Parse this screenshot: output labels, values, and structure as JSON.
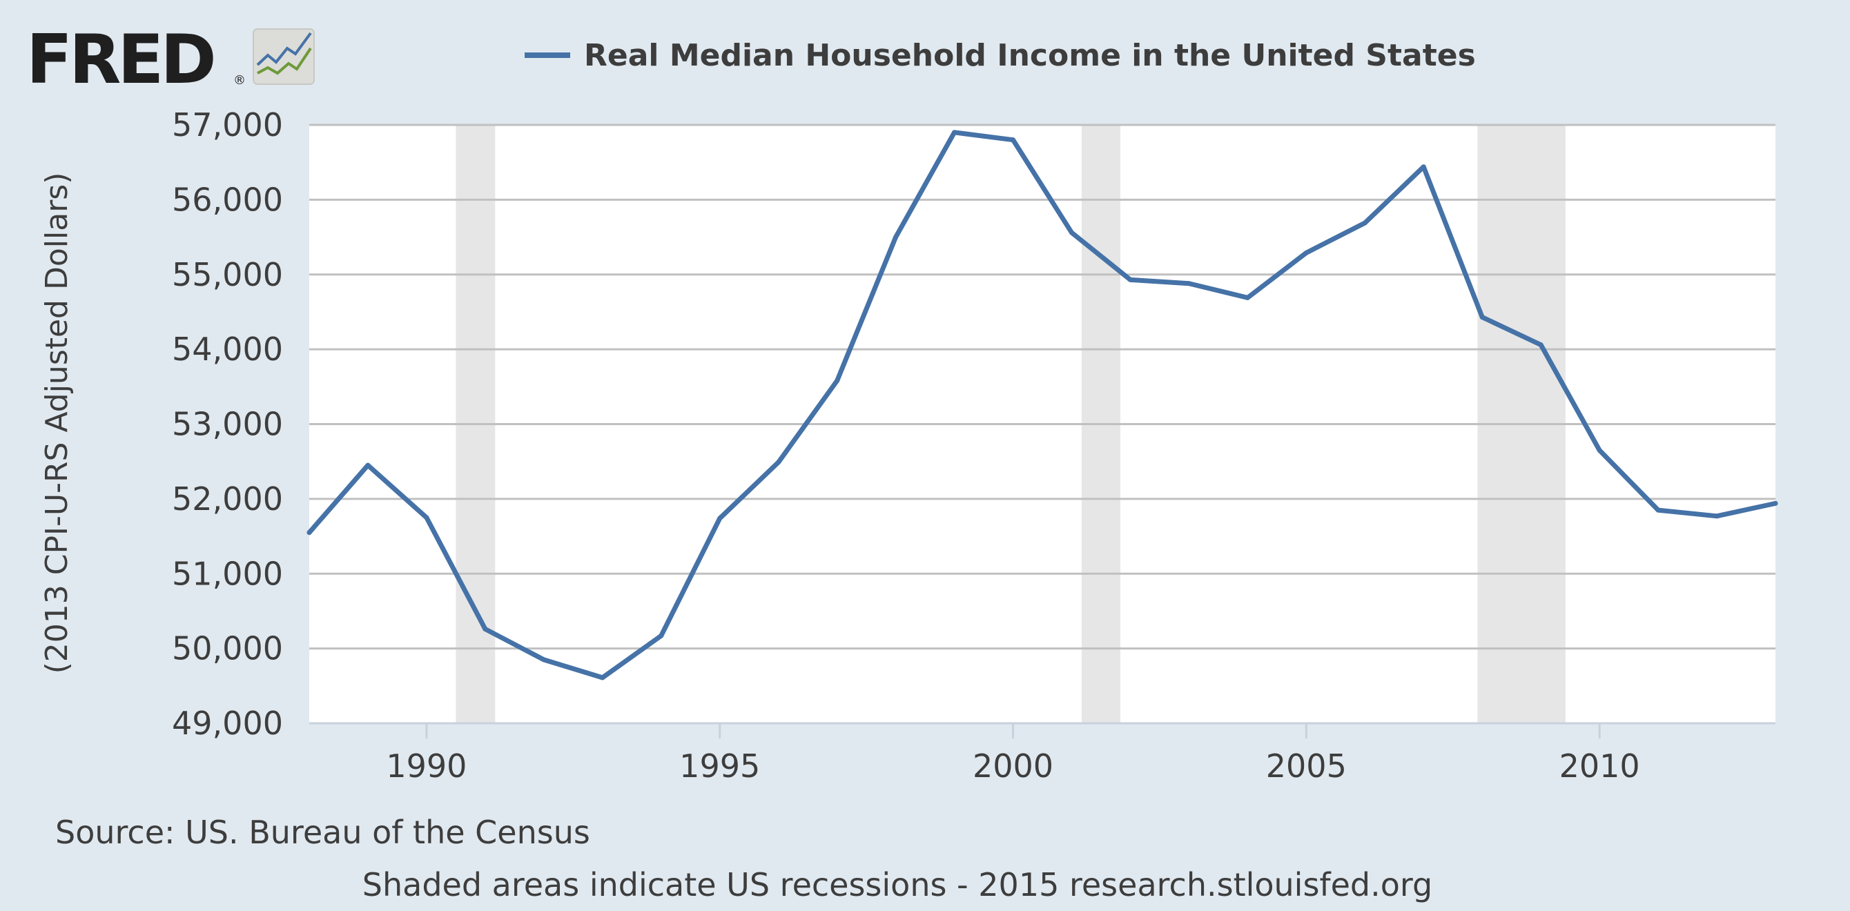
{
  "logo": {
    "text": "FRED",
    "registered": "®"
  },
  "source": "Source: US. Bureau of the Census",
  "footer": "Shaded areas indicate US recessions - 2015 research.stlouisfed.org",
  "colors": {
    "background": "#e1e9f0",
    "plot_background": "#ffffff",
    "series_line": "#4572a7",
    "gridline": "#c0c0c0",
    "recession_shading": "#e6e6e6",
    "logo_line_blue": "#4572a7",
    "logo_line_green": "#6d9a3a"
  },
  "chart_data": {
    "type": "line",
    "ylabel": "(2013 CPI-U-RS Adjusted Dollars)",
    "xlim": [
      1988,
      2013
    ],
    "ylim": [
      49000,
      57000
    ],
    "x_ticks": [
      1990,
      1995,
      2000,
      2005,
      2010
    ],
    "y_ticks": [
      49000,
      50000,
      51000,
      52000,
      53000,
      54000,
      55000,
      56000,
      57000
    ],
    "y_tick_labels": [
      "49,000",
      "50,000",
      "51,000",
      "52,000",
      "53,000",
      "54,000",
      "55,000",
      "56,000",
      "57,000"
    ],
    "grid": true,
    "legend_position": "top-center",
    "recessions": [
      [
        1990.5,
        1991.17
      ],
      [
        2001.17,
        2001.83
      ],
      [
        2007.92,
        2009.42
      ]
    ],
    "series": [
      {
        "name": "Real Median Household Income in the United States",
        "x": [
          1988,
          1989,
          1990,
          1991,
          1992,
          1993,
          1994,
          1995,
          1996,
          1997,
          1998,
          1999,
          2000,
          2001,
          2002,
          2003,
          2004,
          2005,
          2006,
          2007,
          2008,
          2009,
          2010,
          2011,
          2012,
          2013
        ],
        "y": [
          51550,
          52450,
          51750,
          50260,
          49850,
          49610,
          50170,
          51740,
          52490,
          53580,
          55500,
          56900,
          56800,
          55560,
          54930,
          54880,
          54690,
          55290,
          55690,
          56440,
          54430,
          54060,
          52650,
          51850,
          51770,
          51940
        ]
      }
    ]
  }
}
